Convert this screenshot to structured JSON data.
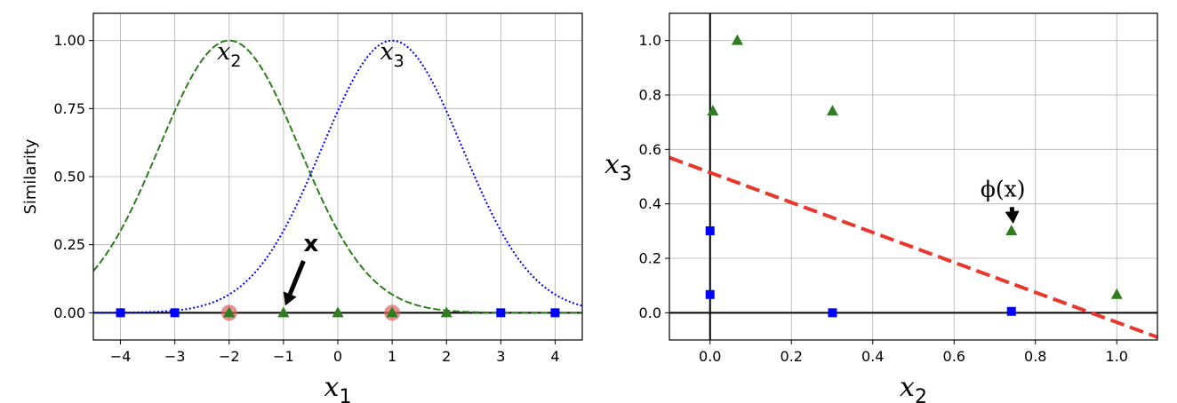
{
  "chart_data": [
    {
      "type": "line",
      "xlim": [
        -4.5,
        4.5
      ],
      "ylim": [
        -0.1,
        1.1
      ],
      "xticks": [
        -4,
        -3,
        -2,
        -1,
        0,
        1,
        2,
        3,
        4
      ],
      "xtick_labels": [
        "−4",
        "−3",
        "−2",
        "−1",
        "0",
        "1",
        "2",
        "3",
        "4"
      ],
      "yticks": [
        0.0,
        0.25,
        0.5,
        0.75,
        1.0
      ],
      "ytick_labels": [
        "0.00",
        "0.25",
        "0.50",
        "0.75",
        "1.00"
      ],
      "grid": true,
      "xlabel": {
        "base": "x",
        "sub": "1"
      },
      "ylabel": "Similarity",
      "gamma": 0.3,
      "series": [
        {
          "landmark": -2,
          "color": "#2e7d1e",
          "dash": "dashed"
        },
        {
          "landmark": 1,
          "color": "#0000ff",
          "dash": "dotted"
        }
      ],
      "curve_labels": [
        {
          "base": "x",
          "sub": "2",
          "x": -2,
          "y": 0.93
        },
        {
          "base": "x",
          "sub": "3",
          "x": 1,
          "y": 0.93
        }
      ],
      "class0_points": {
        "x": [
          -4,
          -3,
          3,
          4
        ],
        "y": [
          0,
          0,
          0,
          0
        ],
        "color": "#0000ff",
        "marker": "square"
      },
      "class1_points": {
        "x": [
          -2,
          -1,
          0,
          1,
          2
        ],
        "y": [
          0,
          0,
          0,
          0,
          0
        ],
        "color": "#2e7d1e",
        "marker": "triangle"
      },
      "landmarks": {
        "x": [
          -2,
          1
        ],
        "y": [
          0,
          0
        ],
        "color": "#e06060",
        "marker": "circle"
      },
      "annotation": {
        "text": "x",
        "bold": true,
        "point": [
          -1,
          0
        ],
        "text_at": [
          -0.5,
          0.2
        ]
      }
    },
    {
      "type": "scatter",
      "xlim": [
        -0.1,
        1.1
      ],
      "ylim": [
        -0.1,
        1.1
      ],
      "xticks": [
        0.0,
        0.2,
        0.4,
        0.6,
        0.8,
        1.0
      ],
      "xtick_labels": [
        "0.0",
        "0.2",
        "0.4",
        "0.6",
        "0.8",
        "1.0"
      ],
      "yticks": [
        0.0,
        0.2,
        0.4,
        0.6,
        0.8,
        1.0
      ],
      "ytick_labels": [
        "0.0",
        "0.2",
        "0.4",
        "0.6",
        "0.8",
        "1.0"
      ],
      "grid": true,
      "xlabel": {
        "base": "x",
        "sub": "2"
      },
      "ylabel": {
        "base": "x",
        "sub": "3"
      },
      "class0_points": {
        "x": [
          0.0,
          0.0,
          0.301,
          0.741
        ],
        "y": [
          0.301,
          0.067,
          0.0,
          0.005
        ],
        "color": "#0000ff",
        "marker": "square"
      },
      "class1_points": {
        "x": [
          0.007,
          0.067,
          0.301,
          0.741,
          1.0
        ],
        "y": [
          0.741,
          1.0,
          0.741,
          0.301,
          0.067
        ],
        "color": "#2e7d1e",
        "marker": "triangle"
      },
      "decision_boundary": {
        "x": [
          -0.1,
          1.1
        ],
        "y": [
          0.57,
          -0.09
        ],
        "color": "#e8372c",
        "dash": "dashed"
      },
      "annotation": {
        "text": "ϕ(x)",
        "point": [
          0.741,
          0.301
        ],
        "text_at": [
          0.72,
          0.46
        ]
      }
    }
  ]
}
